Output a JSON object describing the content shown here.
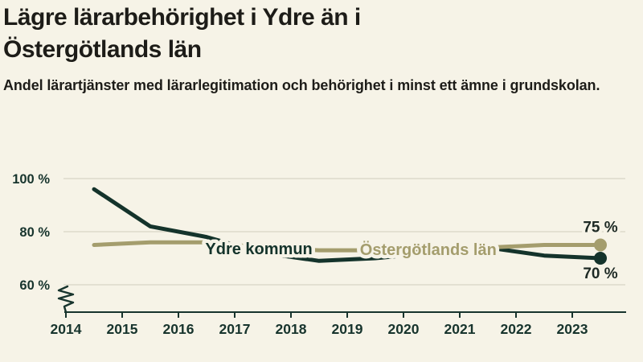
{
  "page": {
    "background": "#F6F3E7",
    "text_color": "#1D1C18",
    "axis_color": "#17342D",
    "grid_color": "#E3E0D2",
    "value_label_color": "#1E2A25"
  },
  "chart_data": {
    "type": "line",
    "title": "Lägre lärarbehörighet i Ydre än i Östergötlands län",
    "subtitle": "Andel lärartjänster med lärarlegitimation och behörighet i minst ett ämne i grundskolan.",
    "xlabel": "",
    "ylabel": "",
    "x_ticks": [
      2014,
      2015,
      2016,
      2017,
      2018,
      2019,
      2020,
      2021,
      2022,
      2023
    ],
    "y_ticks": [
      60,
      80,
      100
    ],
    "y_tick_suffix": " %",
    "ylim": [
      57,
      103
    ],
    "grid": true,
    "axis_break": true,
    "legend_position": "inline-labels",
    "x": [
      2014.5,
      2015.5,
      2016.5,
      2017.5,
      2018.5,
      2019.5,
      2020.5,
      2021.5,
      2022.5,
      2023.5
    ],
    "series": [
      {
        "name": "Ydre kommun",
        "color": "#14332B",
        "values": [
          96,
          82,
          78,
          72,
          69,
          70,
          72,
          74,
          71,
          70
        ],
        "end_label": "70 %",
        "end_label_dy": 25,
        "label_pos": {
          "x": 2017.43,
          "y": 73.6
        }
      },
      {
        "name": "Östergötlands län",
        "color": "#A49D6D",
        "values": [
          75,
          76,
          76,
          74,
          73,
          73,
          73,
          74,
          75,
          75
        ],
        "end_label": "75 %",
        "end_label_dy": -16,
        "label_pos": {
          "x": 2020.44,
          "y": 73.4
        }
      }
    ]
  }
}
